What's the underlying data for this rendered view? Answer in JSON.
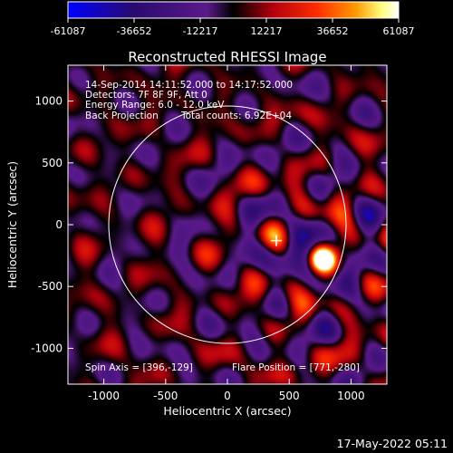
{
  "colorbar": {
    "ticks": [
      "-61087",
      "-36652",
      "-12217",
      "12217",
      "36652",
      "61087"
    ],
    "colors": [
      "#0000ff",
      "#2a0a6e",
      "#5a1a8a",
      "#000000",
      "#b3000e",
      "#ff2a00",
      "#ff9900",
      "#ffff80",
      "#ffffff"
    ]
  },
  "chart_data": {
    "type": "heatmap",
    "title": "Reconstructed RHESSI Image",
    "xlabel": "Heliocentric X (arcsec)",
    "ylabel": "Heliocentric Y (arcsec)",
    "xlim": [
      -1290,
      1290
    ],
    "ylim": [
      -1290,
      1290
    ],
    "xticks": [
      -1000,
      -500,
      0,
      500,
      1000
    ],
    "yticks": [
      -1000,
      -500,
      0,
      500,
      1000
    ],
    "annotations": {
      "line1": "14-Sep-2014 14:11:52.000 to 14:17:52.000",
      "line2": "Detectors: 7F 8F 9F, Att 0",
      "line3": "Energy Range: 6.0 - 12.0 keV",
      "line4_left": "Back Projection",
      "line4_right": "Total counts: 6.92E+04",
      "spin_axis": "Spin Axis = [396,-129]",
      "flare_position": "Flare Position = [771,-280]"
    },
    "solar_limb_radius_arcsec": 960,
    "spin_axis": [
      396,
      -129
    ],
    "flare_position": [
      771,
      -280
    ]
  },
  "footer": {
    "timestamp": "17-May-2022 05:11"
  }
}
